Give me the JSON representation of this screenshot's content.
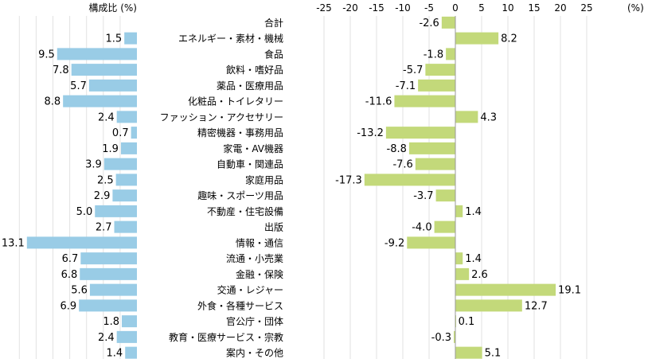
{
  "chart_data": [
    {
      "type": "bar",
      "orientation": "horizontal",
      "title": "構成比 (%)",
      "unit": "%",
      "bar_color": "#99cce6",
      "grid": true,
      "reversed_axis": true,
      "xlim": [
        0,
        14
      ],
      "categories": [
        "合計",
        "エネルギー・素材・機械",
        "食品",
        "飲料・嗜好品",
        "薬品・医療用品",
        "化粧品・トイレタリー",
        "ファッション・アクセサリー",
        "精密機器・事務用品",
        "家電・AV機器",
        "自動車・関連品",
        "家庭用品",
        "趣味・スポーツ用品",
        "不動産・住宅設備",
        "出版",
        "情報・通信",
        "流通・小売業",
        "金融・保険",
        "交通・レジャー",
        "外食・各種サービス",
        "官公庁・団体",
        "教育・医療サービス・宗教",
        "案内・その他"
      ],
      "values": [
        null,
        1.5,
        9.5,
        7.8,
        5.7,
        8.8,
        2.4,
        0.7,
        1.9,
        3.9,
        2.5,
        2.9,
        5.0,
        2.7,
        13.1,
        6.7,
        6.8,
        5.6,
        6.9,
        1.8,
        2.4,
        1.4
      ],
      "labels": [
        "",
        "1.5",
        "9.5",
        "7.8",
        "5.7",
        "8.8",
        "2.4",
        "0.7",
        "1.9",
        "3.9",
        "2.5",
        "2.9",
        "5.0",
        "2.7",
        "13.1",
        "6.7",
        "6.8",
        "5.6",
        "6.9",
        "1.8",
        "2.4",
        "1.4"
      ]
    },
    {
      "type": "bar",
      "orientation": "horizontal",
      "unit": "(%)",
      "bar_color": "#c3d97a",
      "grid": true,
      "xlim": [
        -25,
        25
      ],
      "xticks": [
        -25,
        -20,
        -15,
        -10,
        -5,
        0,
        5,
        10,
        15,
        20,
        25
      ],
      "xtick_labels": [
        "-25",
        "-20",
        "-15",
        "-10",
        "-5",
        "0",
        "5",
        "10",
        "15",
        "20",
        "25"
      ],
      "categories": [
        "合計",
        "エネルギー・素材・機械",
        "食品",
        "飲料・嗜好品",
        "薬品・医療用品",
        "化粧品・トイレタリー",
        "ファッション・アクセサリー",
        "精密機器・事務用品",
        "家電・AV機器",
        "自動車・関連品",
        "家庭用品",
        "趣味・スポーツ用品",
        "不動産・住宅設備",
        "出版",
        "情報・通信",
        "流通・小売業",
        "金融・保険",
        "交通・レジャー",
        "外食・各種サービス",
        "官公庁・団体",
        "教育・医療サービス・宗教",
        "案内・その他"
      ],
      "values": [
        -2.6,
        8.2,
        -1.8,
        -5.7,
        -7.1,
        -11.6,
        4.3,
        -13.2,
        -8.8,
        -7.6,
        -17.3,
        -3.7,
        1.4,
        -4.0,
        -9.2,
        1.4,
        2.6,
        19.1,
        12.7,
        0.1,
        -0.3,
        5.1
      ],
      "labels": [
        "-2.6",
        "8.2",
        "-1.8",
        "-5.7",
        "-7.1",
        "-11.6",
        "4.3",
        "-13.2",
        "-8.8",
        "-7.6",
        "-17.3",
        "-3.7",
        "1.4",
        "-4.0",
        "-9.2",
        "1.4",
        "2.6",
        "19.1",
        "12.7",
        "0.1",
        "-0.3",
        "5.1"
      ]
    }
  ]
}
